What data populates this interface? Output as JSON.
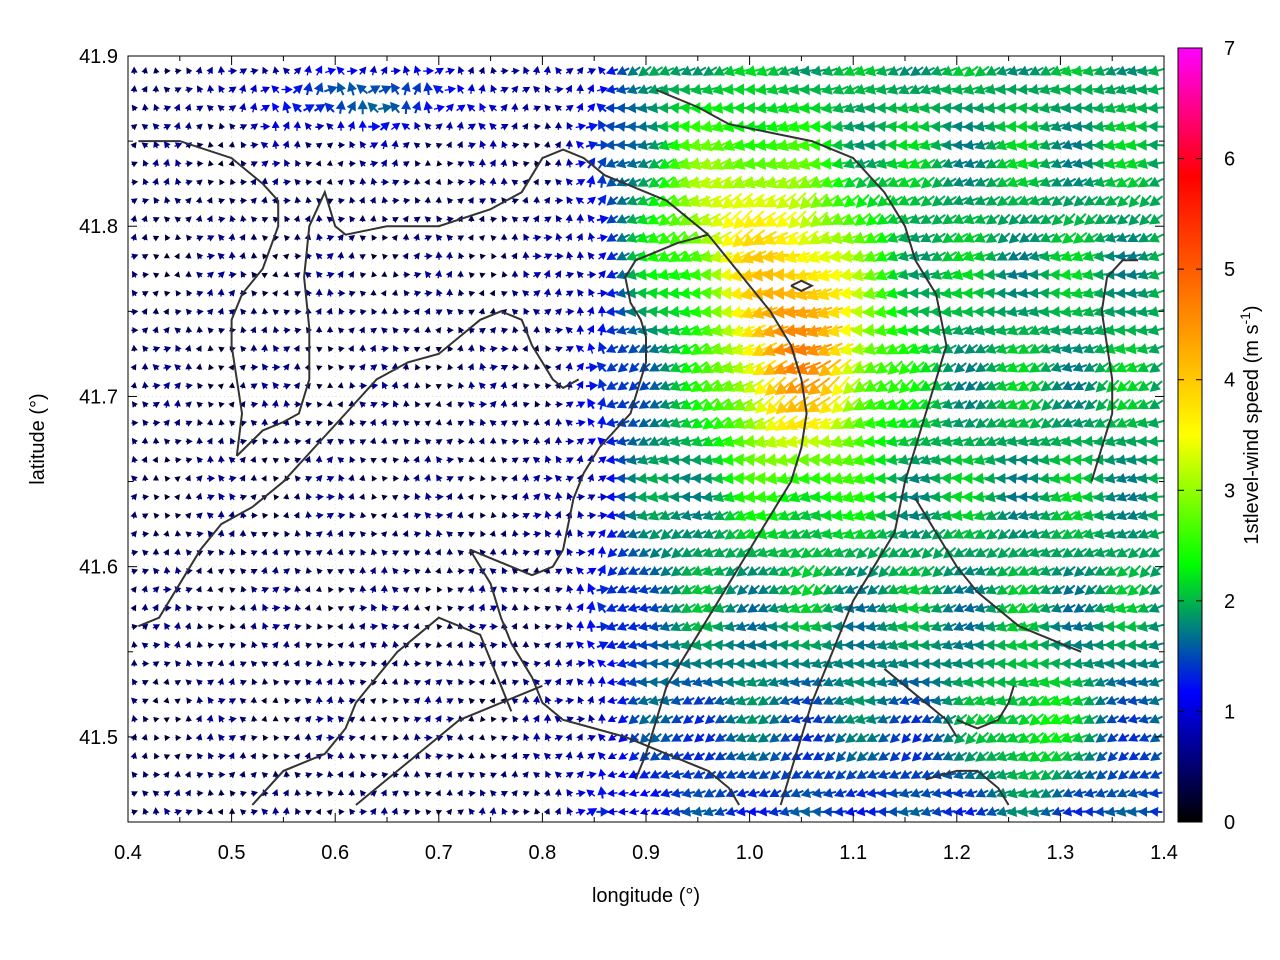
{
  "chart_data": {
    "type": "vector-field",
    "xlabel": "longitude (°)",
    "ylabel": "latitude (°)",
    "xlim": [
      0.4,
      1.4
    ],
    "ylim": [
      41.45,
      41.9
    ],
    "xticks": [
      {
        "v": 0.4,
        "label": "0.4"
      },
      {
        "v": 0.5,
        "label": "0.5"
      },
      {
        "v": 0.6,
        "label": "0.6"
      },
      {
        "v": 0.7,
        "label": "0.7"
      },
      {
        "v": 0.8,
        "label": "0.8"
      },
      {
        "v": 0.9,
        "label": "0.9"
      },
      {
        "v": 1.0,
        "label": "1.0"
      },
      {
        "v": 1.1,
        "label": "1.1"
      },
      {
        "v": 1.2,
        "label": "1.2"
      },
      {
        "v": 1.3,
        "label": "1.3"
      },
      {
        "v": 1.4,
        "label": "1.4"
      }
    ],
    "yticks": [
      {
        "v": 41.5,
        "label": "41.5"
      },
      {
        "v": 41.6,
        "label": "41.6"
      },
      {
        "v": 41.7,
        "label": "41.7"
      },
      {
        "v": 41.8,
        "label": "41.8"
      },
      {
        "v": 41.9,
        "label": "41.9"
      }
    ],
    "grid": true,
    "colorbar": {
      "label": "1stlevel-wind speed (m s-1)",
      "label_main": "1stlevel-wind speed (m s",
      "label_sup": "-1",
      "label_end": ")",
      "range": [
        0,
        7
      ],
      "ticks": [
        {
          "v": 0,
          "label": "0"
        },
        {
          "v": 1,
          "label": "1"
        },
        {
          "v": 2,
          "label": "2"
        },
        {
          "v": 3,
          "label": "3"
        },
        {
          "v": 4,
          "label": "4"
        },
        {
          "v": 5,
          "label": "5"
        },
        {
          "v": 6,
          "label": "6"
        },
        {
          "v": 7,
          "label": "7"
        }
      ],
      "colors": [
        "#000000",
        "#0000ff",
        "#00ff00",
        "#ffff00",
        "#ff8000",
        "#ff0000",
        "#ff00ff"
      ],
      "placement": "right"
    },
    "field": {
      "grid_dlon": 0.0105,
      "grid_dlat": 0.0064,
      "dominant_direction": "westward",
      "max_speed_region": {
        "lon": [
          0.97,
          1.12
        ],
        "lat": [
          41.68,
          41.78
        ],
        "speed": 4.5
      },
      "strong_band_lon": [
        0.83,
        1.38
      ],
      "calm_region_lon": [
        0.4,
        0.82
      ]
    },
    "coastlines": [
      [
        [
          0.41,
          41.85
        ],
        [
          0.45,
          41.85
        ],
        [
          0.5,
          41.84
        ],
        [
          0.53,
          41.825
        ],
        [
          0.545,
          41.815
        ],
        [
          0.545,
          41.8
        ],
        [
          0.53,
          41.775
        ],
        [
          0.51,
          41.76
        ],
        [
          0.5,
          41.745
        ],
        [
          0.5,
          41.73
        ],
        [
          0.505,
          41.71
        ],
        [
          0.51,
          41.69
        ],
        [
          0.505,
          41.665
        ]
      ],
      [
        [
          0.505,
          41.665
        ],
        [
          0.53,
          41.68
        ],
        [
          0.55,
          41.685
        ],
        [
          0.565,
          41.69
        ],
        [
          0.575,
          41.71
        ],
        [
          0.575,
          41.74
        ],
        [
          0.57,
          41.77
        ],
        [
          0.575,
          41.8
        ],
        [
          0.59,
          41.82
        ],
        [
          0.6,
          41.8
        ],
        [
          0.61,
          41.795
        ],
        [
          0.65,
          41.8
        ],
        [
          0.7,
          41.8
        ],
        [
          0.75,
          41.81
        ],
        [
          0.78,
          41.82
        ],
        [
          0.8,
          41.84
        ],
        [
          0.82,
          41.845
        ],
        [
          0.84,
          41.84
        ],
        [
          0.86,
          41.83
        ],
        [
          0.88,
          41.825
        ],
        [
          0.9,
          41.82
        ],
        [
          0.92,
          41.815
        ],
        [
          0.94,
          41.805
        ],
        [
          0.96,
          41.795
        ]
      ],
      [
        [
          0.96,
          41.795
        ],
        [
          0.93,
          41.79
        ],
        [
          0.91,
          41.785
        ],
        [
          0.89,
          41.78
        ],
        [
          0.88,
          41.77
        ],
        [
          0.885,
          41.755
        ],
        [
          0.895,
          41.745
        ],
        [
          0.9,
          41.735
        ],
        [
          0.9,
          41.72
        ],
        [
          0.895,
          41.71
        ],
        [
          0.89,
          41.7
        ],
        [
          0.885,
          41.69
        ],
        [
          0.87,
          41.68
        ],
        [
          0.855,
          41.67
        ],
        [
          0.84,
          41.655
        ],
        [
          0.83,
          41.64
        ],
        [
          0.825,
          41.625
        ],
        [
          0.82,
          41.61
        ],
        [
          0.81,
          41.6
        ],
        [
          0.79,
          41.595
        ],
        [
          0.77,
          41.6
        ],
        [
          0.75,
          41.605
        ],
        [
          0.73,
          41.61
        ]
      ],
      [
        [
          0.73,
          41.61
        ],
        [
          0.75,
          41.59
        ],
        [
          0.76,
          41.57
        ],
        [
          0.77,
          41.555
        ],
        [
          0.78,
          41.545
        ],
        [
          0.79,
          41.535
        ],
        [
          0.8,
          41.52
        ],
        [
          0.82,
          41.51
        ],
        [
          0.85,
          41.505
        ],
        [
          0.88,
          41.5
        ],
        [
          0.9,
          41.495
        ],
        [
          0.92,
          41.49
        ],
        [
          0.94,
          41.485
        ],
        [
          0.96,
          41.48
        ],
        [
          0.98,
          41.47
        ],
        [
          0.99,
          41.46
        ]
      ],
      [
        [
          0.52,
          41.46
        ],
        [
          0.55,
          41.48
        ],
        [
          0.59,
          41.49
        ],
        [
          0.61,
          41.505
        ],
        [
          0.62,
          41.52
        ],
        [
          0.64,
          41.535
        ],
        [
          0.66,
          41.55
        ],
        [
          0.68,
          41.56
        ],
        [
          0.7,
          41.57
        ],
        [
          0.72,
          41.565
        ],
        [
          0.74,
          41.56
        ],
        [
          0.75,
          41.545
        ],
        [
          0.76,
          41.53
        ],
        [
          0.77,
          41.515
        ]
      ],
      [
        [
          0.41,
          41.565
        ],
        [
          0.43,
          41.57
        ],
        [
          0.45,
          41.59
        ],
        [
          0.47,
          41.61
        ],
        [
          0.49,
          41.625
        ],
        [
          0.52,
          41.635
        ],
        [
          0.55,
          41.65
        ],
        [
          0.58,
          41.67
        ],
        [
          0.61,
          41.69
        ],
        [
          0.64,
          41.71
        ],
        [
          0.67,
          41.72
        ],
        [
          0.7,
          41.725
        ],
        [
          0.72,
          41.735
        ],
        [
          0.74,
          41.745
        ],
        [
          0.76,
          41.75
        ],
        [
          0.78,
          41.745
        ],
        [
          0.79,
          41.73
        ],
        [
          0.8,
          41.72
        ],
        [
          0.81,
          41.71
        ],
        [
          0.82,
          41.705
        ],
        [
          0.835,
          41.71
        ]
      ],
      [
        [
          0.62,
          41.46
        ],
        [
          0.64,
          41.47
        ],
        [
          0.66,
          41.48
        ],
        [
          0.68,
          41.49
        ],
        [
          0.7,
          41.5
        ],
        [
          0.72,
          41.51
        ],
        [
          0.74,
          41.515
        ],
        [
          0.76,
          41.52
        ],
        [
          0.78,
          41.525
        ],
        [
          0.8,
          41.53
        ]
      ],
      [
        [
          0.91,
          41.88
        ],
        [
          0.95,
          41.87
        ],
        [
          0.98,
          41.86
        ],
        [
          1.02,
          41.855
        ],
        [
          1.06,
          41.85
        ],
        [
          1.1,
          41.84
        ],
        [
          1.13,
          41.82
        ],
        [
          1.15,
          41.8
        ],
        [
          1.16,
          41.78
        ],
        [
          1.18,
          41.76
        ],
        [
          1.19,
          41.73
        ],
        [
          1.18,
          41.71
        ],
        [
          1.17,
          41.69
        ],
        [
          1.16,
          41.67
        ],
        [
          1.15,
          41.65
        ],
        [
          1.14,
          41.62
        ],
        [
          1.12,
          41.6
        ],
        [
          1.1,
          41.58
        ],
        [
          1.08,
          41.55
        ],
        [
          1.06,
          41.52
        ],
        [
          1.05,
          41.5
        ],
        [
          1.04,
          41.48
        ],
        [
          1.03,
          41.46
        ]
      ],
      [
        [
          0.96,
          41.795
        ],
        [
          0.98,
          41.78
        ],
        [
          1.0,
          41.765
        ],
        [
          1.02,
          41.75
        ],
        [
          1.04,
          41.73
        ],
        [
          1.05,
          41.71
        ],
        [
          1.055,
          41.69
        ],
        [
          1.05,
          41.67
        ],
        [
          1.04,
          41.65
        ],
        [
          1.02,
          41.63
        ],
        [
          1.0,
          41.61
        ],
        [
          0.98,
          41.59
        ],
        [
          0.96,
          41.57
        ],
        [
          0.94,
          41.55
        ],
        [
          0.92,
          41.53
        ],
        [
          0.91,
          41.51
        ],
        [
          0.9,
          41.49
        ],
        [
          0.89,
          41.475
        ]
      ],
      [
        [
          1.16,
          41.64
        ],
        [
          1.18,
          41.62
        ],
        [
          1.2,
          41.6
        ],
        [
          1.22,
          41.585
        ],
        [
          1.24,
          41.575
        ],
        [
          1.26,
          41.565
        ],
        [
          1.28,
          41.56
        ],
        [
          1.3,
          41.555
        ],
        [
          1.32,
          41.55
        ]
      ],
      [
        [
          1.33,
          41.65
        ],
        [
          1.34,
          41.67
        ],
        [
          1.35,
          41.69
        ],
        [
          1.35,
          41.71
        ],
        [
          1.345,
          41.73
        ],
        [
          1.34,
          41.75
        ],
        [
          1.345,
          41.77
        ],
        [
          1.36,
          41.78
        ],
        [
          1.375,
          41.78
        ]
      ],
      [
        [
          1.2,
          41.51
        ],
        [
          1.22,
          41.505
        ],
        [
          1.24,
          41.51
        ],
        [
          1.25,
          41.52
        ],
        [
          1.255,
          41.53
        ]
      ],
      [
        [
          1.17,
          41.475
        ],
        [
          1.2,
          41.48
        ],
        [
          1.22,
          41.48
        ],
        [
          1.24,
          41.47
        ],
        [
          1.25,
          41.46
        ]
      ],
      [
        [
          1.04,
          41.765
        ],
        [
          1.05,
          41.768
        ],
        [
          1.06,
          41.765
        ],
        [
          1.05,
          41.762
        ],
        [
          1.04,
          41.765
        ]
      ],
      [
        [
          1.13,
          41.54
        ],
        [
          1.15,
          41.53
        ],
        [
          1.17,
          41.52
        ],
        [
          1.19,
          41.51
        ],
        [
          1.2,
          41.5
        ]
      ]
    ]
  }
}
